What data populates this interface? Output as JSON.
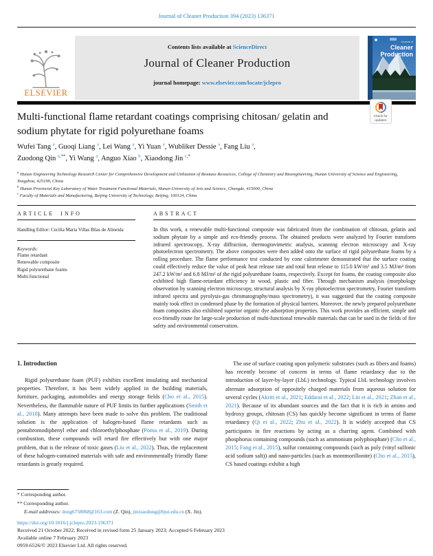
{
  "page": {
    "citation": "Journal of Cleaner Production 394 (2023) 136371"
  },
  "banner": {
    "contents_line": [
      {
        "t": "Contents lists available at ",
        "s": "p"
      },
      {
        "t": "ScienceDirect",
        "s": "l"
      }
    ],
    "journal_title": "Journal of Cleaner Production",
    "homepage_line": [
      {
        "t": "journal homepage: ",
        "s": "p"
      },
      {
        "t": "www.elsevier.com/locate/jclepro",
        "s": "l"
      }
    ],
    "elsevier_word": "ELSEVIER",
    "cover": {
      "masthead_small": "Journal of",
      "title_line1": "Cleaner",
      "title_line2": "Production"
    }
  },
  "badge": {
    "line1": "Check for",
    "line2": "updates"
  },
  "article": {
    "title_line1": "Multi-functional flame retardant coatings comprising chitosan/ gelatin and",
    "title_line2": "sodium phytate for rigid polyurethane foams",
    "authors_segments": [
      {
        "t": "Wufei Tang ",
        "s": "p"
      },
      {
        "t": "a",
        "s": "sup"
      },
      {
        "t": ", Guoqi Liang ",
        "s": "p"
      },
      {
        "t": "a",
        "s": "sup"
      },
      {
        "t": ", Lei Wang ",
        "s": "p"
      },
      {
        "t": "a",
        "s": "sup"
      },
      {
        "t": ", Yi Yuan ",
        "s": "p"
      },
      {
        "t": "a",
        "s": "sup"
      },
      {
        "t": ", Wubliker Dessie ",
        "s": "p"
      },
      {
        "t": "a",
        "s": "sup"
      },
      {
        "t": ", Fang Liu ",
        "s": "p"
      },
      {
        "t": "a",
        "s": "sup"
      },
      {
        "t": ",",
        "s": "p"
      },
      {
        "s": "br"
      },
      {
        "t": "Zuodong Qin ",
        "s": "p"
      },
      {
        "t": "a",
        "s": "sup"
      },
      {
        "t": ",**",
        "s": "supb"
      },
      {
        "t": ", Yi Wang ",
        "s": "p"
      },
      {
        "t": "a",
        "s": "sup"
      },
      {
        "t": ", Anguo Xiao ",
        "s": "p"
      },
      {
        "t": "b",
        "s": "sup"
      },
      {
        "t": ", Xiaodong Jin ",
        "s": "p"
      },
      {
        "t": "c",
        "s": "sup"
      },
      {
        "t": ",*",
        "s": "supb"
      }
    ],
    "affiliations": [
      [
        {
          "t": "a",
          "s": "supi"
        },
        {
          "t": " Hunan Engineering Technology Research Center for Comprehensive Development and Utilization of Biomass Resources, College of Chemistry and Bioengineering, Hunan University of Science and Engineering, Yongzhou, 425199, China",
          "s": "i"
        }
      ],
      [
        {
          "t": "b",
          "s": "supi"
        },
        {
          "t": " Hunan Provincial Key Laboratory of Water Treatment Functional Materials, Hunan University of Arts and Science, Changde, 415000, China",
          "s": "i"
        }
      ],
      [
        {
          "t": "c",
          "s": "supi"
        },
        {
          "t": " Faculty of Materials and Manufacturing, Beijing University of Technology, Beijing, 100124, China",
          "s": "i"
        }
      ]
    ]
  },
  "info": {
    "heading": "ARTICLE INFO",
    "handling_editor": "Handling Editor: Cecilia Maria Villas Bôas de Almeida",
    "keywords_label": "Keywords:",
    "keywords": [
      "Flame retardant",
      "Renewable composite",
      "Rigid polyurethane foams",
      "Multi-functional"
    ]
  },
  "abstract": {
    "heading": "ABSTRACT",
    "text": "In this work, a renewable multi-functional composite was fabricated from the combination of chitosan, gelatin and sodium phytate by a simple and eco-friendly process. The obtained products were analyzed by Fourier transform infrared spectroscopy, X-ray diffraction, thermogravimetric analysis, scanning electron microscopy and X-ray photoelectron spectrometry. The above composites were then added onto the surface of rigid polyurethane foams by a rolling procedure. The flame performance test conducted by cone calorimeter demonstrated that the surface coating could effectively reduce the value of peak heat release rate and total heat release to 115.0 kW/m² and 3.5 MJ/m² from 247.2 kW/m² and 6.8 MJ/m² of the rigid polyurethane foams, respectively. Except for foams, the coating composite also exhibited high flame-retardant efficiency in wood, plastic and fiber. Through mechanism analysis (morphology observation by scanning electron microscopy, structural analysis by X-ray photoelectron spectrometry, Fourier transform infrared spectra and pyrolysis-gas chromatography/mass spectrometry), it was suggested that the coating composite mainly took effect in condensed phase by the formation of physical barriers. Moreover, the newly prepared polyurethane foam composites also exhibited superior organic dye adsorption properties. This work provides an efficient, simple and eco-friendly route for large-scale production of multi-functional renewable materials that can be used in the fields of fire safety and environmental conservation."
  },
  "body": {
    "section_heading": "1. Introduction",
    "left_paragraph": [
      {
        "t": "Rigid polyurethane foam (PUF) exhibits excellent insulating and mechanical properties. Therefore, it has been widely applied in the building materials, furniture, packaging, automobiles and energy storage fields (",
        "s": "p"
      },
      {
        "t": "Cho et al., 2015",
        "s": "l"
      },
      {
        "t": "). Nevertheless, the flammable nature of PUF limits its further applications (",
        "s": "p"
      },
      {
        "t": "Smith et al., 2018",
        "s": "l"
      },
      {
        "t": "). Many attempts have been made to solve this problem. The traditional solution is the application of halogen-based flame retardants such as pentabromodiphenyl ether and chloroethylphosphate (",
        "s": "p"
      },
      {
        "t": "Poma et al., 2019",
        "s": "l"
      },
      {
        "t": "). During combustion, these compounds will retard fire effectively but with one major problem, that is the release of toxic gases (",
        "s": "p"
      },
      {
        "t": "Liu et al., 2022",
        "s": "l"
      },
      {
        "t": "). Thus, the replacement of these halogen-contained materials with safe and environmentally friendly flame retardants is greatly required.",
        "s": "p"
      }
    ],
    "right_paragraph": [
      {
        "t": "The use of surface coating upon polymeric substrates (such as fibers and foams) has recently become of concern in terms of flame retardancy due to the introduction of layer-by-layer (LbL) technology. Typical LbL technology involves alternate adsorption of oppositely charged materials from aqueous solution for several cycles (",
        "s": "p"
      },
      {
        "t": "Akriti et al., 2021",
        "s": "l"
      },
      {
        "t": "; ",
        "s": "p"
      },
      {
        "t": "Eddarai et al., 2022",
        "s": "l"
      },
      {
        "t": "; ",
        "s": "p"
      },
      {
        "t": "Lin et al., 2021",
        "s": "l"
      },
      {
        "t": "; ",
        "s": "p"
      },
      {
        "t": "Zhan et al., 2021",
        "s": "l"
      },
      {
        "t": "). Because of its abundant sources and the fact that it is rich in amino and hydroxy groups, chitosan (CS) has quickly become significant in terms of flame retardancy (",
        "s": "p"
      },
      {
        "t": "Qi et al., 2022",
        "s": "l"
      },
      {
        "t": "; ",
        "s": "p"
      },
      {
        "t": "Zhu et al., 2022",
        "s": "l"
      },
      {
        "t": "). It is widely accepted that CS participates in fire reactions by acting as a charring agent. Combined with phosphorus containing compounds (such as ammonium polyphosphate) (",
        "s": "p"
      },
      {
        "t": "Cho et al., 2015",
        "s": "l"
      },
      {
        "t": "; ",
        "s": "p"
      },
      {
        "t": "Fang et al., 2015",
        "s": "l"
      },
      {
        "t": "), sulfur containing compounds (such as poly (vinyl sulfonic acid sodium salt)) and nano-particles (such as montmorillonite) (",
        "s": "p"
      },
      {
        "t": "Cho et al., 2015",
        "s": "l"
      },
      {
        "t": "), CS based coatings exhibit a high",
        "s": "p"
      }
    ]
  },
  "footnotes": {
    "corr1": "* Corresponding author.",
    "corr2": "** Corresponding author.",
    "email_line": [
      {
        "t": "E-mail addresses: ",
        "s": "i"
      },
      {
        "t": "dong6758068@163.com",
        "s": "l"
      },
      {
        "t": " (Z. Qin), ",
        "s": "p"
      },
      {
        "t": "jinxiaodong@bjut.edu.cn",
        "s": "l"
      },
      {
        "t": " (X. Jin).",
        "s": "p"
      }
    ]
  },
  "footer": {
    "doi": "https://doi.org/10.1016/j.jclepro.2023.136371",
    "received": "Received 21 October 2022; Received in revised form 25 January 2023; Accepted 6 February 2023",
    "available": "Available online 7 February 2023",
    "issn": "0959-6526/© 2023 Elsevier Ltd. All rights reserved."
  }
}
